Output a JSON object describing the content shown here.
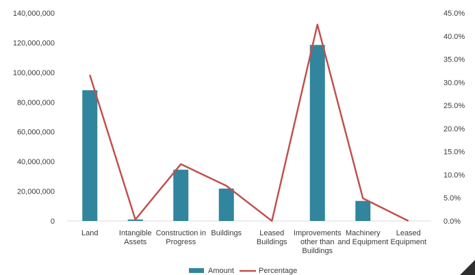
{
  "chart_data": {
    "type": "bar",
    "title": "",
    "xlabel": "",
    "ylabel": "",
    "categories": [
      [
        "Land"
      ],
      [
        "Intangible",
        "Assets"
      ],
      [
        "Construction in",
        "Progress"
      ],
      [
        "Buildings"
      ],
      [
        "Leased",
        "Buildings"
      ],
      [
        "Improvements",
        "other than",
        "Buildings"
      ],
      [
        "Machinery",
        "and Equipment"
      ],
      [
        "Leased",
        "Equipment"
      ]
    ],
    "series": [
      {
        "name": "Amount",
        "type": "bar",
        "axis": "left",
        "color": "#31859c",
        "values": [
          88000000,
          1000000,
          34500000,
          21800000,
          0,
          118500000,
          13500000,
          0
        ]
      },
      {
        "name": "Percentage",
        "type": "line",
        "axis": "right",
        "color": "#c0504d",
        "values": [
          31.6,
          0.3,
          12.3,
          7.6,
          0,
          42.5,
          4.9,
          0
        ]
      }
    ],
    "y_left": {
      "lim": [
        0,
        140000000
      ],
      "ticks": [
        0,
        20000000,
        40000000,
        60000000,
        80000000,
        100000000,
        120000000,
        140000000
      ],
      "tick_labels": [
        "0",
        "20,000,000",
        "40,000,000",
        "60,000,000",
        "80,000,000",
        "100,000,000",
        "120,000,000",
        "140,000,000"
      ]
    },
    "y_right": {
      "lim": [
        0,
        45
      ],
      "ticks": [
        0,
        5,
        10,
        15,
        20,
        25,
        30,
        35,
        40,
        45
      ],
      "tick_labels": [
        "0.0%",
        "5.0%",
        "10.0%",
        "15.0%",
        "20.0%",
        "25.0%",
        "30.0%",
        "35.0%",
        "40.0%",
        "45.0%"
      ]
    },
    "grid": false,
    "legend": {
      "position": "bottom",
      "entries": [
        "Amount",
        "Percentage"
      ]
    }
  }
}
